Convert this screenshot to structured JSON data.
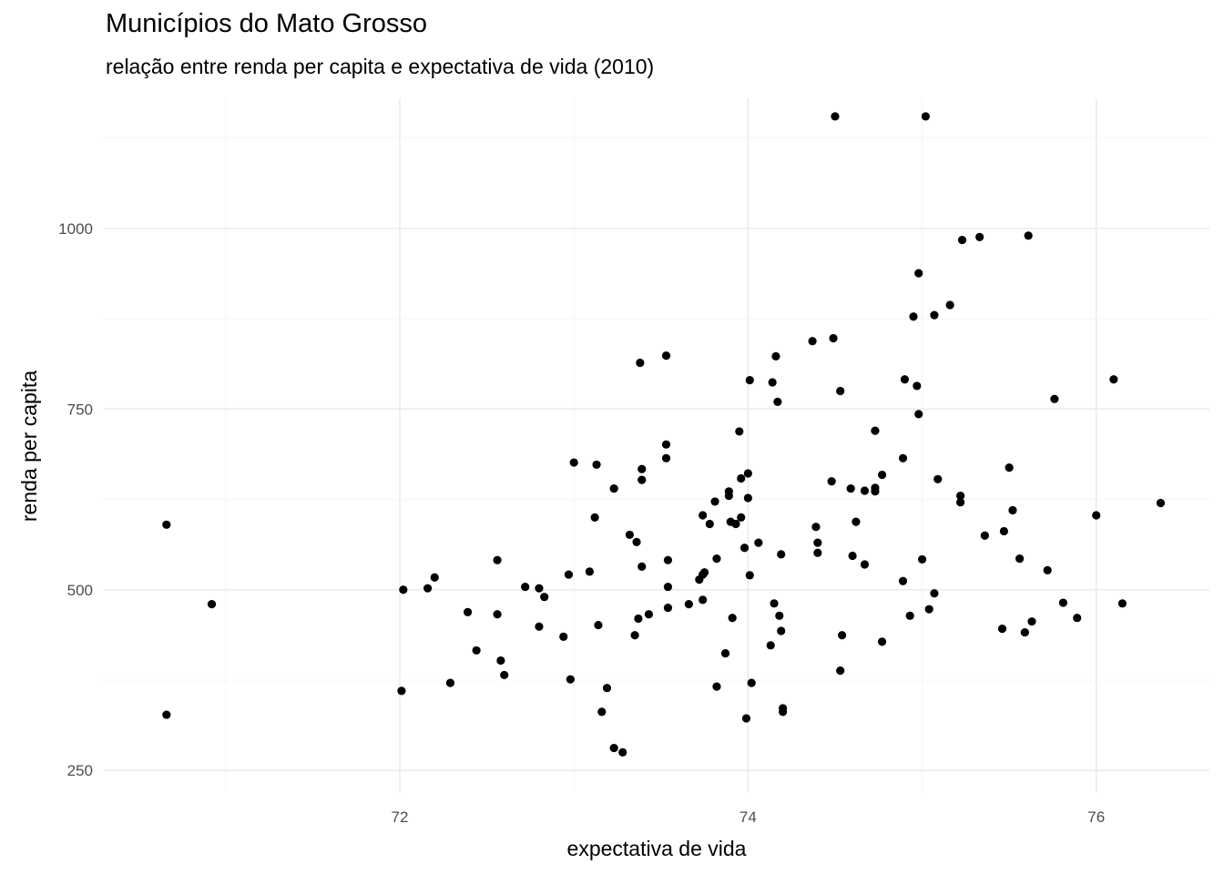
{
  "chart_data": {
    "type": "scatter",
    "title": "Municípios do Mato Grosso",
    "subtitle": "relação entre renda per capita e expectativa de vida (2010)",
    "xlabel": "expectativa de vida",
    "ylabel": "renda per capita",
    "xlim": [
      70.3,
      76.65
    ],
    "ylim": [
      220,
      1180
    ],
    "x_ticks": [
      72,
      74,
      76
    ],
    "x_tick_labels": [
      "72",
      "74",
      "76"
    ],
    "y_ticks": [
      250,
      500,
      750,
      1000
    ],
    "y_tick_labels": [
      "250",
      "500",
      "750",
      "1000"
    ],
    "grid": true,
    "legend": "none",
    "point_color": "#000000",
    "points": [
      [
        70.66,
        590
      ],
      [
        70.66,
        327
      ],
      [
        70.92,
        480
      ],
      [
        72.01,
        360
      ],
      [
        72.02,
        500
      ],
      [
        72.16,
        502
      ],
      [
        72.2,
        517
      ],
      [
        72.29,
        371
      ],
      [
        72.39,
        469
      ],
      [
        72.44,
        416
      ],
      [
        72.56,
        541
      ],
      [
        72.56,
        466
      ],
      [
        72.58,
        402
      ],
      [
        72.6,
        382
      ],
      [
        72.72,
        504
      ],
      [
        72.8,
        502
      ],
      [
        72.8,
        449
      ],
      [
        72.83,
        490
      ],
      [
        72.94,
        435
      ],
      [
        72.97,
        521
      ],
      [
        72.98,
        376
      ],
      [
        73.0,
        676
      ],
      [
        73.09,
        525
      ],
      [
        73.12,
        600
      ],
      [
        73.13,
        673
      ],
      [
        73.14,
        451
      ],
      [
        73.16,
        331
      ],
      [
        73.19,
        364
      ],
      [
        73.23,
        640
      ],
      [
        73.23,
        281
      ],
      [
        73.28,
        275
      ],
      [
        73.32,
        576
      ],
      [
        73.35,
        437
      ],
      [
        73.36,
        566
      ],
      [
        73.37,
        460
      ],
      [
        73.38,
        814
      ],
      [
        73.39,
        667
      ],
      [
        73.39,
        652
      ],
      [
        73.39,
        532
      ],
      [
        73.43,
        466
      ],
      [
        73.53,
        824
      ],
      [
        73.53,
        701
      ],
      [
        73.53,
        682
      ],
      [
        73.54,
        541
      ],
      [
        73.54,
        504
      ],
      [
        73.54,
        475
      ],
      [
        73.66,
        480
      ],
      [
        73.72,
        514
      ],
      [
        73.74,
        521
      ],
      [
        73.74,
        486
      ],
      [
        73.74,
        603
      ],
      [
        73.75,
        524
      ],
      [
        73.78,
        591
      ],
      [
        73.81,
        622
      ],
      [
        73.82,
        543
      ],
      [
        73.82,
        366
      ],
      [
        73.87,
        412
      ],
      [
        73.89,
        636
      ],
      [
        73.89,
        630
      ],
      [
        73.9,
        594
      ],
      [
        73.91,
        461
      ],
      [
        73.93,
        591
      ],
      [
        73.95,
        719
      ],
      [
        73.96,
        654
      ],
      [
        73.96,
        600
      ],
      [
        73.98,
        558
      ],
      [
        73.99,
        322
      ],
      [
        74.0,
        661
      ],
      [
        74.0,
        627
      ],
      [
        74.01,
        790
      ],
      [
        74.01,
        520
      ],
      [
        74.02,
        371
      ],
      [
        74.06,
        565
      ],
      [
        74.13,
        423
      ],
      [
        74.14,
        787
      ],
      [
        74.15,
        481
      ],
      [
        74.16,
        823
      ],
      [
        74.17,
        760
      ],
      [
        74.18,
        464
      ],
      [
        74.19,
        443
      ],
      [
        74.19,
        549
      ],
      [
        74.2,
        336
      ],
      [
        74.2,
        331
      ],
      [
        74.37,
        844
      ],
      [
        74.39,
        587
      ],
      [
        74.4,
        565
      ],
      [
        74.4,
        551
      ],
      [
        74.48,
        650
      ],
      [
        74.49,
        848
      ],
      [
        74.5,
        1155
      ],
      [
        74.53,
        775
      ],
      [
        74.53,
        388
      ],
      [
        74.54,
        437
      ],
      [
        74.59,
        640
      ],
      [
        74.6,
        547
      ],
      [
        74.62,
        594
      ],
      [
        74.67,
        535
      ],
      [
        74.67,
        637
      ],
      [
        74.73,
        641
      ],
      [
        74.73,
        636
      ],
      [
        74.73,
        720
      ],
      [
        74.77,
        659
      ],
      [
        74.77,
        428
      ],
      [
        74.89,
        512
      ],
      [
        74.89,
        682
      ],
      [
        74.9,
        791
      ],
      [
        74.93,
        464
      ],
      [
        74.95,
        878
      ],
      [
        74.97,
        782
      ],
      [
        74.98,
        938
      ],
      [
        74.98,
        743
      ],
      [
        75.0,
        542
      ],
      [
        75.02,
        1155
      ],
      [
        75.04,
        473
      ],
      [
        75.07,
        495
      ],
      [
        75.07,
        880
      ],
      [
        75.09,
        653
      ],
      [
        75.16,
        894
      ],
      [
        75.22,
        621
      ],
      [
        75.22,
        630
      ],
      [
        75.23,
        984
      ],
      [
        75.33,
        988
      ],
      [
        75.36,
        575
      ],
      [
        75.46,
        446
      ],
      [
        75.47,
        581
      ],
      [
        75.5,
        669
      ],
      [
        75.52,
        610
      ],
      [
        75.56,
        543
      ],
      [
        75.59,
        441
      ],
      [
        75.61,
        990
      ],
      [
        75.63,
        456
      ],
      [
        75.72,
        527
      ],
      [
        75.76,
        764
      ],
      [
        75.81,
        482
      ],
      [
        75.89,
        461
      ],
      [
        76.0,
        603
      ],
      [
        76.1,
        791
      ],
      [
        76.15,
        481
      ],
      [
        76.37,
        620
      ]
    ]
  }
}
